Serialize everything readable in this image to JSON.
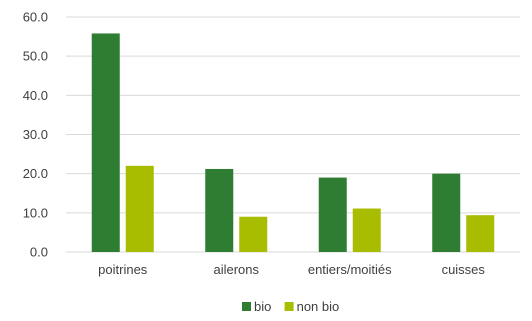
{
  "chart_data": {
    "type": "bar",
    "title": "",
    "xlabel": "",
    "ylabel": "",
    "categories": [
      "poitrines",
      "ailerons",
      "entiers/moitiés",
      "cuisses"
    ],
    "series": [
      {
        "name": "bio",
        "values": [
          55.8,
          21.2,
          19.0,
          20.0
        ],
        "color": "#2e7d32"
      },
      {
        "name": "non bio",
        "values": [
          22.0,
          9.0,
          11.1,
          9.4
        ],
        "color": "#a8bc00"
      }
    ],
    "ylim": [
      0,
      60
    ],
    "yticks": [
      "0.0",
      "10.0",
      "20.0",
      "30.0",
      "40.0",
      "50.0",
      "60.0"
    ],
    "grid": true,
    "legend_position": "bottom"
  }
}
